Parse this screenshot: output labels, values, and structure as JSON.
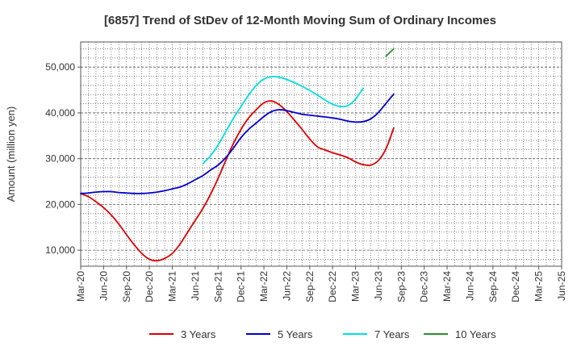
{
  "chart_data": {
    "type": "line",
    "title": "[6857]  Trend of StDev of 12-Month Moving Sum of Ordinary Incomes",
    "ylabel": "Amount (million yen)",
    "xlabel": "",
    "ylim": [
      6500,
      55500
    ],
    "y_ticks": [
      10000,
      20000,
      30000,
      40000,
      50000
    ],
    "y_tick_labels": [
      "10,000",
      "20,000",
      "30,000",
      "40,000",
      "50,000"
    ],
    "x_tick_labels": [
      "Mar-20",
      "Jun-20",
      "Sep-20",
      "Dec-20",
      "Mar-21",
      "Jun-21",
      "Sep-21",
      "Dec-21",
      "Mar-22",
      "Jun-22",
      "Sep-22",
      "Dec-22",
      "Mar-23",
      "Jun-23",
      "Sep-23",
      "Dec-23",
      "Mar-24",
      "Jun-24",
      "Sep-24",
      "Dec-24",
      "Mar-25",
      "Jun-25"
    ],
    "x_index_range": [
      0,
      63
    ],
    "grid": true,
    "legend_position": "bottom",
    "series": [
      {
        "name": "3 Years",
        "color": "#dd0000",
        "start_index": 0,
        "values": [
          22400,
          21700,
          20600,
          19300,
          17700,
          15700,
          13400,
          11200,
          9300,
          8000,
          7700,
          8200,
          9300,
          11300,
          13900,
          16500,
          19100,
          22200,
          25700,
          29600,
          33300,
          36400,
          38900,
          40700,
          42200,
          42600,
          41800,
          40300,
          38400,
          36400,
          34300,
          32600,
          31900,
          31300,
          30800,
          30200,
          29300,
          28700,
          28600,
          29600,
          32200,
          36700
        ]
      },
      {
        "name": "5 Years",
        "color": "#0000cc",
        "start_index": 0,
        "values": [
          22400,
          22500,
          22700,
          22800,
          22800,
          22600,
          22500,
          22400,
          22400,
          22500,
          22700,
          23000,
          23400,
          23800,
          24500,
          25400,
          26300,
          27500,
          28600,
          30200,
          32300,
          34600,
          36400,
          37800,
          39200,
          40300,
          40700,
          40500,
          40100,
          39700,
          39500,
          39300,
          39100,
          38900,
          38600,
          38200,
          38000,
          38100,
          38700,
          40100,
          42100,
          44100
        ]
      },
      {
        "name": "7 Years",
        "color": "#00e0e0",
        "start_index": 16,
        "values": [
          28900,
          30600,
          33000,
          35900,
          38800,
          41400,
          43900,
          46000,
          47400,
          47900,
          47800,
          47300,
          46600,
          45800,
          44900,
          43900,
          42800,
          41900,
          41400,
          41600,
          43000,
          45400
        ]
      },
      {
        "name": "10 Years",
        "color": "#2e8b2e",
        "start_index": 40,
        "values": [
          52400,
          54000
        ]
      }
    ]
  }
}
